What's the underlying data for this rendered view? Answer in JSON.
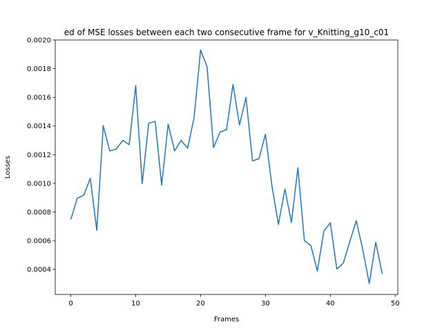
{
  "chart_data": {
    "type": "line",
    "title": "ed of MSE losses between each two consecutive frame for v_Knitting_g10_c01",
    "xlabel": "Frames",
    "ylabel": "Losses",
    "xlim": [
      -2.4,
      50.4
    ],
    "ylim": [
      0.000225,
      0.002
    ],
    "xticks": [
      0,
      10,
      20,
      30,
      40,
      50
    ],
    "xtick_labels": [
      "0",
      "10",
      "20",
      "30",
      "40",
      "50"
    ],
    "yticks": [
      0.0004,
      0.0006,
      0.0008,
      0.001,
      0.0012,
      0.0014,
      0.0016,
      0.0018,
      0.002
    ],
    "ytick_labels": [
      "0.0004",
      "0.0006",
      "0.0008",
      "0.0010",
      "0.0012",
      "0.0014",
      "0.0016",
      "0.0018",
      "0.0020"
    ],
    "grid": false,
    "line_color": "#1f77b4",
    "x": [
      0,
      1,
      2,
      3,
      4,
      5,
      6,
      7,
      8,
      9,
      10,
      11,
      12,
      13,
      14,
      15,
      16,
      17,
      18,
      19,
      20,
      21,
      22,
      23,
      24,
      25,
      26,
      27,
      28,
      29,
      30,
      31,
      32,
      33,
      34,
      35,
      36,
      37,
      38,
      39,
      40,
      41,
      42,
      43,
      44,
      45,
      46,
      47,
      48
    ],
    "series": [
      {
        "values": [
          0.000749,
          0.000897,
          0.000918,
          0.001035,
          0.000673,
          0.001403,
          0.001226,
          0.001239,
          0.0013,
          0.00127,
          0.001682,
          0.000998,
          0.00142,
          0.001432,
          0.000988,
          0.001413,
          0.001226,
          0.0013,
          0.001245,
          0.001459,
          0.00193,
          0.001814,
          0.00125,
          0.001358,
          0.001374,
          0.00169,
          0.001407,
          0.0016,
          0.001157,
          0.001172,
          0.001343,
          0.000982,
          0.000713,
          0.000961,
          0.000727,
          0.001109,
          0.0006,
          0.000566,
          0.000389,
          0.000667,
          0.000725,
          0.000402,
          0.000444,
          0.000593,
          0.000739,
          0.000538,
          0.000302,
          0.000589,
          0.000369
        ]
      }
    ]
  }
}
